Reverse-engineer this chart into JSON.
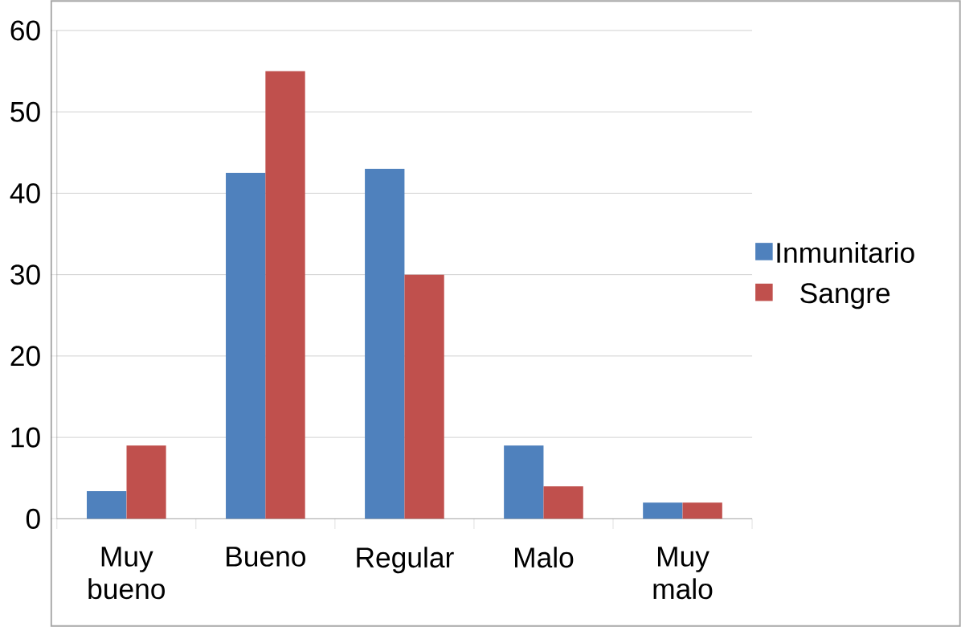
{
  "chart_data": {
    "type": "bar",
    "categories": [
      "Muy bueno",
      "Bueno",
      "Regular",
      "Malo",
      "Muy malo"
    ],
    "series": [
      {
        "name": "Inmunitario",
        "color": "#4f81bd",
        "values": [
          3.4,
          42.5,
          43,
          9,
          2
        ]
      },
      {
        "name": "Sangre",
        "color": "#c0504d",
        "values": [
          9,
          55,
          30,
          4,
          2
        ]
      }
    ],
    "ylim": [
      0,
      60
    ],
    "yticks": [
      0,
      10,
      20,
      30,
      40,
      50,
      60
    ],
    "grid": "y",
    "legend": "right"
  }
}
